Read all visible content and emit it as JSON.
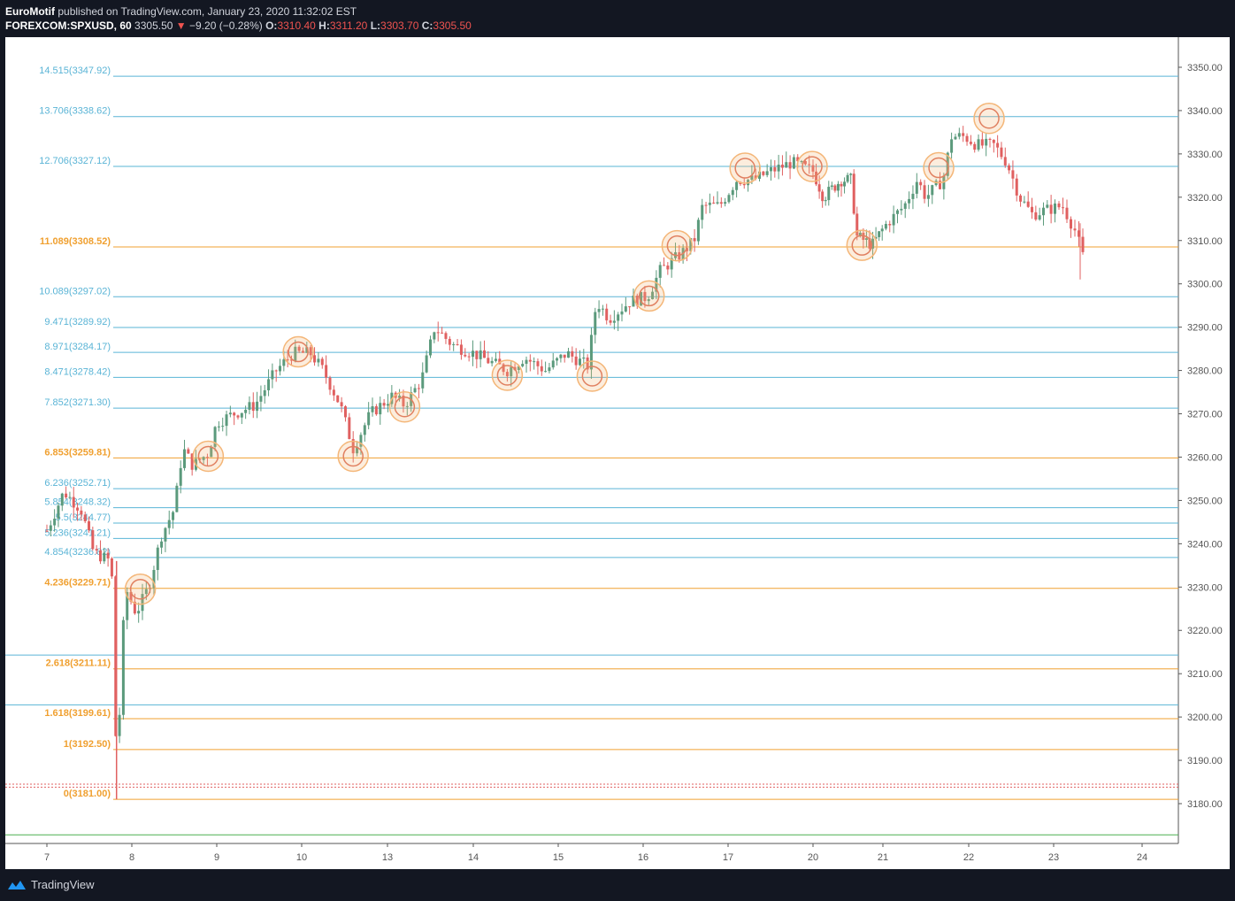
{
  "header": {
    "author": "EuroMotif",
    "published_text": "published on TradingView.com, January 23, 2020 11:32:02 EST",
    "symbol": "FOREXCOM:SPXUSD, 60",
    "price": "3305.50",
    "change": "−9.20 (−0.28%)",
    "o_label": "O:",
    "o": "3310.40",
    "h_label": "H:",
    "h": "3311.20",
    "l_label": "L:",
    "l": "3303.70",
    "c_label": "C:",
    "c": "3305.50"
  },
  "footer": {
    "brand": "TradingView"
  },
  "colors": {
    "up": "#5b9a7c",
    "down": "#e06060",
    "fib_blue": "#5ab4d6",
    "fib_orange": "#f0a030",
    "circle": "#f4b678",
    "axis_text": "#555555"
  },
  "chart_data": {
    "type": "candlestick",
    "ylim": [
      3170,
      3356
    ],
    "y_ticks": [
      "3180.00",
      "3190.00",
      "3200.00",
      "3210.00",
      "3220.00",
      "3230.00",
      "3240.00",
      "3250.00",
      "3260.00",
      "3270.00",
      "3280.00",
      "3290.00",
      "3300.00",
      "3310.00",
      "3320.00",
      "3330.00",
      "3340.00",
      "3350.00"
    ],
    "x_ticks": [
      "7",
      "8",
      "9",
      "10",
      "13",
      "14",
      "15",
      "16",
      "17",
      "20",
      "21",
      "22",
      "23",
      "24"
    ],
    "fib_levels": [
      {
        "label": "14.515(3347.92)",
        "price": 3347.92,
        "color": "blue"
      },
      {
        "label": "13.706(3338.62)",
        "price": 3338.62,
        "color": "blue"
      },
      {
        "label": "12.706(3327.12)",
        "price": 3327.12,
        "color": "blue"
      },
      {
        "label": "11.089(3308.52)",
        "price": 3308.52,
        "color": "orange"
      },
      {
        "label": "10.089(3297.02)",
        "price": 3297.02,
        "color": "blue"
      },
      {
        "label": "9.471(3289.92)",
        "price": 3289.92,
        "color": "blue"
      },
      {
        "label": "8.971(3284.17)",
        "price": 3284.17,
        "color": "blue"
      },
      {
        "label": "8.471(3278.42)",
        "price": 3278.42,
        "color": "blue"
      },
      {
        "label": "7.852(3271.30)",
        "price": 3271.3,
        "color": "blue"
      },
      {
        "label": "6.853(3259.81)",
        "price": 3259.81,
        "color": "orange"
      },
      {
        "label": "6.236(3252.71)",
        "price": 3252.71,
        "color": "blue"
      },
      {
        "label": "5.854(3248.32)",
        "price": 3248.32,
        "color": "blue"
      },
      {
        "label": "5.5(3244.77)",
        "price": 3244.77,
        "color": "blue"
      },
      {
        "label": "5.236(3241.21)",
        "price": 3241.21,
        "color": "blue"
      },
      {
        "label": "4.854(3236.82)",
        "price": 3236.82,
        "color": "blue"
      },
      {
        "label": "4.236(3229.71)",
        "price": 3229.71,
        "color": "orange"
      },
      {
        "label": "2.618(3211.11)",
        "price": 3211.11,
        "color": "orange"
      },
      {
        "label": "1.618(3199.61)",
        "price": 3199.61,
        "color": "orange"
      },
      {
        "label": "1(3192.50)",
        "price": 3192.5,
        "color": "orange"
      },
      {
        "label": "0(3181.00)",
        "price": 3181.0,
        "color": "orange"
      }
    ],
    "extra_lines": [
      {
        "price": 3214.3,
        "color": "blue"
      },
      {
        "price": 3202.8,
        "color": "blue"
      },
      {
        "price": 3172.8,
        "color": "green"
      }
    ],
    "circles": [
      {
        "x": 8.1,
        "price": 3229.5
      },
      {
        "x": 8.9,
        "price": 3260.2
      },
      {
        "x": 9.96,
        "price": 3284.3
      },
      {
        "x": 10.6,
        "price": 3260.2
      },
      {
        "x": 11.2,
        "price": 3271.6
      },
      {
        "x": 12.4,
        "price": 3278.9
      },
      {
        "x": 13.4,
        "price": 3278.7
      },
      {
        "x": 14.07,
        "price": 3297.2
      },
      {
        "x": 14.4,
        "price": 3308.8
      },
      {
        "x": 15.2,
        "price": 3326.7
      },
      {
        "x": 15.99,
        "price": 3327.1
      },
      {
        "x": 16.7,
        "price": 3308.9
      },
      {
        "x": 17.65,
        "price": 3326.8
      },
      {
        "x": 18.24,
        "price": 3338.2
      }
    ],
    "price_path": [
      [
        7.0,
        3243
      ],
      [
        7.2,
        3252
      ],
      [
        7.4,
        3248
      ],
      [
        7.55,
        3238
      ],
      [
        7.75,
        3236
      ],
      [
        7.78,
        3228
      ],
      [
        7.82,
        3185
      ],
      [
        7.88,
        3212
      ],
      [
        7.92,
        3230
      ],
      [
        8.05,
        3224
      ],
      [
        8.2,
        3230
      ],
      [
        8.35,
        3242
      ],
      [
        8.5,
        3248
      ],
      [
        8.6,
        3262
      ],
      [
        8.72,
        3258
      ],
      [
        8.9,
        3261
      ],
      [
        9.0,
        3268
      ],
      [
        9.2,
        3270
      ],
      [
        9.45,
        3272
      ],
      [
        9.7,
        3280
      ],
      [
        9.9,
        3284
      ],
      [
        10.1,
        3284
      ],
      [
        10.25,
        3280
      ],
      [
        10.45,
        3272
      ],
      [
        10.6,
        3262
      ],
      [
        10.8,
        3270
      ],
      [
        11.05,
        3274
      ],
      [
        11.2,
        3272
      ],
      [
        11.4,
        3278
      ],
      [
        11.55,
        3290
      ],
      [
        11.75,
        3286
      ],
      [
        12.0,
        3284
      ],
      [
        12.2,
        3282
      ],
      [
        12.4,
        3280
      ],
      [
        12.6,
        3283
      ],
      [
        12.85,
        3280
      ],
      [
        13.1,
        3284
      ],
      [
        13.35,
        3281
      ],
      [
        13.45,
        3296
      ],
      [
        13.6,
        3292
      ],
      [
        13.85,
        3296
      ],
      [
        14.05,
        3297
      ],
      [
        14.2,
        3303
      ],
      [
        14.45,
        3307
      ],
      [
        14.6,
        3310
      ],
      [
        14.7,
        3318
      ],
      [
        14.9,
        3318
      ],
      [
        15.1,
        3324
      ],
      [
        15.3,
        3324
      ],
      [
        15.5,
        3326
      ],
      [
        15.75,
        3328
      ],
      [
        16.0,
        3326
      ],
      [
        16.15,
        3320
      ],
      [
        16.4,
        3324
      ],
      [
        16.55,
        3324
      ],
      [
        16.62,
        3311
      ],
      [
        16.85,
        3309
      ],
      [
        17.05,
        3314
      ],
      [
        17.25,
        3318
      ],
      [
        17.4,
        3324
      ],
      [
        17.5,
        3320
      ],
      [
        17.7,
        3324
      ],
      [
        17.8,
        3334
      ],
      [
        17.95,
        3334
      ],
      [
        18.1,
        3332
      ],
      [
        18.3,
        3332
      ],
      [
        18.45,
        3328
      ],
      [
        18.6,
        3320
      ],
      [
        18.75,
        3316
      ],
      [
        18.9,
        3317
      ],
      [
        19.1,
        3318
      ],
      [
        19.25,
        3312
      ],
      [
        19.35,
        3305
      ]
    ]
  }
}
